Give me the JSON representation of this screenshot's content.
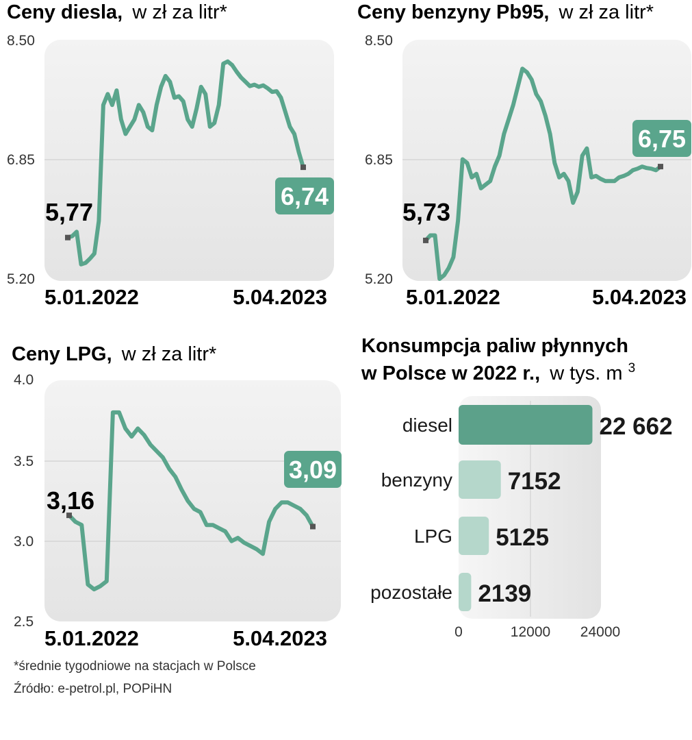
{
  "colors": {
    "line": "#5aa58c",
    "bar_main": "#5ca18a",
    "bar_light": "#b5d7cb",
    "panel_bg": "#ececec",
    "grid": "#d6d6d6",
    "marker": "#555555",
    "badge_text": "#ffffff"
  },
  "chart_data": [
    {
      "type": "line",
      "title": "Ceny diesla,",
      "subtitle": "w zł za litr*",
      "yticks": [
        "8.50",
        "6.85",
        "5.20"
      ],
      "ylim": [
        5.2,
        8.5
      ],
      "x_start_label": "5.01.2022",
      "x_end_label": "5.04.2023",
      "start_value": "5,77",
      "end_value": "6,74",
      "series": [
        {
          "values": [
            5.77,
            5.79,
            5.85,
            5.4,
            5.42,
            5.48,
            5.55,
            6.0,
            7.6,
            7.75,
            7.6,
            7.8,
            7.4,
            7.2,
            7.3,
            7.4,
            7.6,
            7.5,
            7.3,
            7.25,
            7.6,
            7.85,
            8.0,
            7.92,
            7.7,
            7.72,
            7.65,
            7.4,
            7.3,
            7.55,
            7.85,
            7.75,
            7.3,
            7.35,
            7.6,
            8.17,
            8.2,
            8.15,
            8.06,
            7.98,
            7.92,
            7.86,
            7.88,
            7.85,
            7.87,
            7.83,
            7.78,
            7.79,
            7.7,
            7.5,
            7.3,
            7.2,
            6.95,
            6.74
          ]
        }
      ]
    },
    {
      "type": "line",
      "title": "Ceny benzyny Pb95,",
      "subtitle": "w zł za litr*",
      "yticks": [
        "8.50",
        "6.85",
        "5.20"
      ],
      "ylim": [
        5.2,
        8.5
      ],
      "x_start_label": "5.01.2022",
      "x_end_label": "5.04.2023",
      "start_value": "5,73",
      "end_value": "6,75",
      "series": [
        {
          "values": [
            5.73,
            5.8,
            5.8,
            5.2,
            5.25,
            5.35,
            5.5,
            6.0,
            6.85,
            6.8,
            6.6,
            6.65,
            6.45,
            6.5,
            6.55,
            6.75,
            6.9,
            7.2,
            7.4,
            7.6,
            7.85,
            8.1,
            8.05,
            7.95,
            7.75,
            7.65,
            7.45,
            7.2,
            6.8,
            6.6,
            6.65,
            6.55,
            6.25,
            6.4,
            6.9,
            7.0,
            6.6,
            6.62,
            6.58,
            6.55,
            6.55,
            6.55,
            6.6,
            6.62,
            6.65,
            6.7,
            6.72,
            6.75,
            6.73,
            6.72,
            6.7,
            6.75
          ]
        }
      ]
    },
    {
      "type": "line",
      "title": "Ceny LPG,",
      "subtitle": "w zł za litr*",
      "yticks": [
        "4.0",
        "3.5",
        "3.0",
        "2.5"
      ],
      "ylim": [
        2.5,
        4.0
      ],
      "x_start_label": "5.01.2022",
      "x_end_label": "5.04.2023",
      "start_value": "3,16",
      "end_value": "3,09",
      "series": [
        {
          "values": [
            3.16,
            3.12,
            3.1,
            2.73,
            2.7,
            2.72,
            2.75,
            3.8,
            3.8,
            3.7,
            3.65,
            3.7,
            3.66,
            3.6,
            3.56,
            3.52,
            3.45,
            3.4,
            3.32,
            3.25,
            3.2,
            3.18,
            3.1,
            3.1,
            3.08,
            3.06,
            3.0,
            3.02,
            2.99,
            2.97,
            2.95,
            2.92,
            3.12,
            3.2,
            3.24,
            3.24,
            3.22,
            3.2,
            3.16,
            3.09
          ]
        }
      ]
    },
    {
      "type": "bar",
      "orientation": "horizontal",
      "title_line1": "Konsumpcja paliw płynnych",
      "title_line2": "w Polsce w 2022 r.,",
      "subtitle": "w tys. m",
      "subtitle_sup": "3",
      "categories": [
        "diesel",
        "benzyny",
        "LPG",
        "pozostałe"
      ],
      "values": [
        22662,
        7152,
        5125,
        2139
      ],
      "value_labels": [
        "22 662",
        "7152",
        "5125",
        "2139"
      ],
      "xticks": [
        "0",
        "12000",
        "24000"
      ],
      "xlim": [
        0,
        24000
      ]
    }
  ],
  "footnotes": [
    "*średnie tygodniowe na stacjach w Polsce",
    "Źródło: e-petrol.pl, POPiHN"
  ]
}
